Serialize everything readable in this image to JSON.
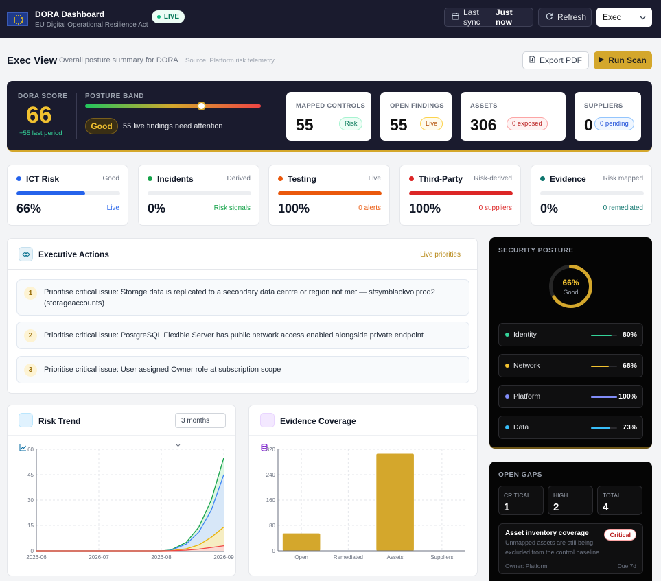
{
  "app": {
    "title": "DORA Dashboard",
    "subtitle": "EU Digital Operational Resilience Act",
    "live_badge": "LIVE",
    "last_sync_label": "Last sync",
    "last_sync_value": "Just now",
    "refresh_label": "Refresh",
    "view_select": "Exec"
  },
  "view": {
    "title": "Exec View",
    "subtitle": "Overall posture summary for DORA",
    "source": "Source: Platform risk telemetry",
    "export_label": "Export PDF",
    "scan_label": "Run Scan"
  },
  "score": {
    "label": "DORA SCORE",
    "value": "66",
    "delta": "+55 last period",
    "band_label": "POSTURE BAND",
    "band_position": 0.66,
    "band_value": "Good",
    "band_note": "55 live findings need attention"
  },
  "kpis": [
    {
      "label": "MAPPED CONTROLS",
      "value": "55",
      "tag": "Risk"
    },
    {
      "label": "OPEN FINDINGS",
      "value": "55",
      "tag": "Live"
    },
    {
      "label": "ASSETS",
      "value": "306",
      "tag": "0 exposed"
    },
    {
      "label": "SUPPLIERS",
      "value": "0",
      "tag": "0 pending"
    }
  ],
  "domains": [
    {
      "name": "ICT Risk",
      "status": "Good",
      "percent": "66%",
      "level": 0.66,
      "footer": "Live",
      "color": "#2563eb"
    },
    {
      "name": "Incidents",
      "status": "Derived",
      "percent": "0%",
      "level": 0,
      "footer": "Risk signals",
      "color": "#16a34a"
    },
    {
      "name": "Testing",
      "status": "Live",
      "percent": "100%",
      "level": 1,
      "footer": "0 alerts",
      "color": "#ea580c"
    },
    {
      "name": "Third-Party",
      "status": "Risk-derived",
      "percent": "100%",
      "level": 1,
      "footer": "0 suppliers",
      "color": "#dc2626"
    },
    {
      "name": "Evidence",
      "status": "Risk mapped",
      "percent": "0%",
      "level": 0,
      "footer": "0 remediated",
      "color": "#0f766e"
    }
  ],
  "actions": {
    "title": "Executive Actions",
    "live_label": "Live priorities",
    "items": [
      {
        "num": "1",
        "text": "Prioritise critical issue: Storage data is replicated to a secondary data centre or region not met — stsymblackvolprod2 (storageaccounts)"
      },
      {
        "num": "2",
        "text": "Prioritise critical issue: PostgreSQL Flexible Server has public network access enabled alongside private endpoint"
      },
      {
        "num": "3",
        "text": "Prioritise critical issue: User assigned Owner role at subscription scope"
      }
    ]
  },
  "posture": {
    "label": "SECURITY POSTURE",
    "ring_value": "66%",
    "ring_level": 0.66,
    "ring_sub": "Good",
    "rows": [
      {
        "name": "Identity",
        "percent": "80%",
        "level": 0.8,
        "color": "#34d399"
      },
      {
        "name": "Network",
        "percent": "68%",
        "level": 0.68,
        "color": "#f2c230"
      },
      {
        "name": "Platform",
        "percent": "100%",
        "level": 1,
        "color": "#818cf8"
      },
      {
        "name": "Data",
        "percent": "73%",
        "level": 0.73,
        "color": "#38bdf8"
      }
    ]
  },
  "gaps": {
    "label": "OPEN GAPS",
    "boxes": [
      {
        "label": "CRITICAL",
        "value": "1"
      },
      {
        "label": "HIGH",
        "value": "2"
      },
      {
        "label": "TOTAL",
        "value": "4"
      }
    ],
    "card": {
      "title": "Asset inventory coverage",
      "badge": "Critical",
      "desc": "Unmapped assets are still being excluded from the control baseline.",
      "owner": "Owner: Platform",
      "due": "Due 7d"
    }
  },
  "risk_trend": {
    "title": "Risk Trend",
    "range": "3 months"
  },
  "evidence": {
    "title": "Evidence Coverage"
  },
  "chart_data": [
    {
      "type": "area",
      "title": "Risk Trend",
      "x": [
        "2026-06",
        "2026-07",
        "2026-08",
        "2026-09"
      ],
      "yticks": [
        0,
        15,
        30,
        45,
        60
      ],
      "ylim": [
        0,
        60
      ],
      "grid": true,
      "series": [
        {
          "color": "#16a34a",
          "fill": "#d7f5de",
          "x": [
            0,
            1,
            2,
            2.15,
            2.4,
            2.6,
            2.8,
            3
          ],
          "values": [
            0,
            0,
            0,
            0.5,
            5,
            14,
            30,
            55
          ]
        },
        {
          "color": "#3b82f6",
          "fill": "#d6e4fb",
          "x": [
            0,
            1,
            2,
            2.15,
            2.4,
            2.6,
            2.8,
            3
          ],
          "values": [
            0,
            0,
            0,
            0.3,
            4,
            11,
            24,
            45
          ]
        },
        {
          "color": "#eab308",
          "fill": "#fbedb8",
          "x": [
            0,
            1,
            2,
            2.15,
            2.4,
            2.6,
            2.8,
            3
          ],
          "values": [
            0,
            0,
            0,
            0.1,
            1.2,
            3.5,
            8,
            14
          ]
        },
        {
          "color": "#ef4444",
          "fill": "#fbd3d3",
          "x": [
            0,
            1,
            2,
            2.15,
            2.4,
            2.6,
            2.8,
            3
          ],
          "values": [
            0,
            0,
            0,
            0.05,
            0.4,
            1,
            2,
            3
          ]
        }
      ]
    },
    {
      "type": "bar",
      "title": "Evidence Coverage",
      "categories": [
        "Open",
        "Remediated",
        "Assets",
        "Suppliers"
      ],
      "values": [
        55,
        0,
        306,
        0
      ],
      "yticks": [
        0,
        80,
        160,
        240,
        320
      ],
      "ylim": [
        0,
        320
      ],
      "grid": true,
      "color": "#d4a72c"
    }
  ]
}
